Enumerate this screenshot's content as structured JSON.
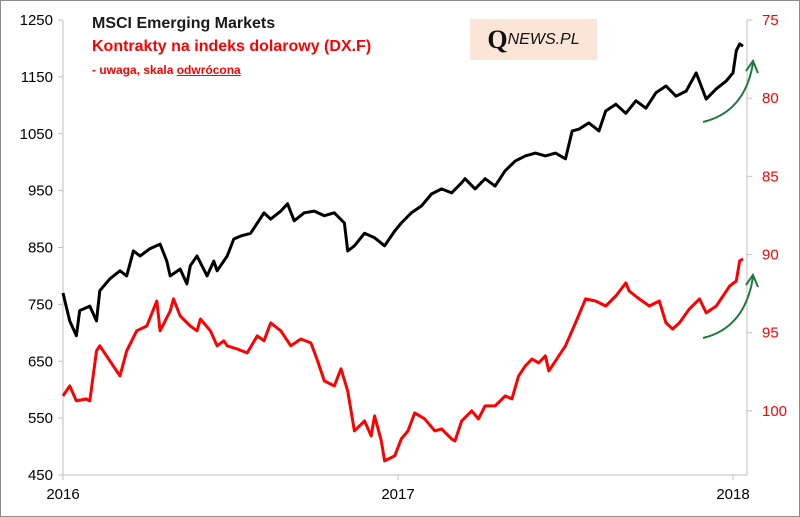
{
  "chart_data": {
    "type": "line",
    "title": "MSCI Emerging Markets",
    "subtitle": "Kontrakty na indeks dolarowy (DX.F)",
    "note_prefix": "- uwaga, skala ",
    "note_underlined": "odwrócona",
    "logo": {
      "q": "Q",
      "rest": "NEWS.PL"
    },
    "x_ticks": [
      "2016",
      "2017",
      "2018"
    ],
    "x_tick_values": [
      2016,
      2017,
      2018
    ],
    "xlim": [
      2016,
      2018.04
    ],
    "left_axis": {
      "ticks": [
        "1250",
        "1150",
        "1050",
        "950",
        "850",
        "750",
        "650",
        "550",
        "450"
      ],
      "tick_values": [
        1250,
        1150,
        1050,
        950,
        850,
        750,
        650,
        550,
        450
      ],
      "ylim": [
        450,
        1250
      ]
    },
    "right_axis": {
      "ticks": [
        "75",
        "80",
        "85",
        "90",
        "95",
        "100"
      ],
      "tick_values": [
        75,
        80,
        85,
        90,
        95,
        100
      ],
      "ylim": [
        75,
        104.1
      ],
      "inverted": true
    },
    "colors": {
      "msci": "#000000",
      "dx": "#ff0000",
      "arrow": "#1e7a3c",
      "logo_bg": "#fbe5d6"
    },
    "series": [
      {
        "name": "MSCI Emerging Markets",
        "axis": "left",
        "x": [
          2016.0,
          2016.02,
          2016.04,
          2016.05,
          2016.08,
          2016.1,
          2016.11,
          2016.14,
          2016.17,
          2016.19,
          2016.21,
          2016.23,
          2016.26,
          2016.29,
          2016.31,
          2016.32,
          2016.35,
          2016.37,
          2016.38,
          2016.4,
          2016.43,
          2016.45,
          2016.46,
          2016.49,
          2016.51,
          2016.53,
          2016.56,
          2016.6,
          2016.62,
          2016.65,
          2016.67,
          2016.69,
          2016.72,
          2016.75,
          2016.78,
          2016.81,
          2016.84,
          2016.85,
          2016.87,
          2016.9,
          2016.93,
          2016.96,
          2016.99,
          2017.01,
          2017.04,
          2017.07,
          2017.1,
          2017.13,
          2017.16,
          2017.19,
          2017.2,
          2017.23,
          2017.26,
          2017.29,
          2017.32,
          2017.35,
          2017.38,
          2017.41,
          2017.44,
          2017.47,
          2017.5,
          2017.52,
          2017.54,
          2017.57,
          2017.6,
          2017.62,
          2017.65,
          2017.68,
          2017.71,
          2017.74,
          2017.77,
          2017.8,
          2017.83,
          2017.86,
          2017.89,
          2017.92,
          2017.95,
          2017.98,
          2018.0,
          2018.01,
          2018.02,
          2018.03
        ],
        "values": [
          770,
          721,
          695,
          739,
          747,
          721,
          774,
          795,
          809,
          800,
          844,
          835,
          848,
          856,
          826,
          800,
          812,
          786,
          818,
          835,
          800,
          826,
          809,
          835,
          865,
          870,
          875,
          911,
          900,
          914,
          927,
          897,
          911,
          914,
          906,
          911,
          893,
          844,
          853,
          875,
          867,
          853,
          879,
          893,
          911,
          923,
          944,
          953,
          946,
          964,
          971,
          953,
          971,
          958,
          985,
          1002,
          1011,
          1016,
          1011,
          1016,
          1006,
          1055,
          1058,
          1069,
          1055,
          1090,
          1102,
          1086,
          1108,
          1095,
          1122,
          1134,
          1116,
          1125,
          1157,
          1111,
          1129,
          1143,
          1157,
          1196,
          1208,
          1204
        ]
      },
      {
        "name": "Kontrakty na indeks dolarowy (DX.F)",
        "axis": "right",
        "x": [
          2016.0,
          2016.02,
          2016.04,
          2016.07,
          2016.08,
          2016.1,
          2016.11,
          2016.14,
          2016.17,
          2016.19,
          2016.22,
          2016.25,
          2016.28,
          2016.29,
          2016.32,
          2016.33,
          2016.35,
          2016.38,
          2016.4,
          2016.41,
          2016.44,
          2016.46,
          2016.48,
          2016.49,
          2016.52,
          2016.55,
          2016.58,
          2016.6,
          2016.62,
          2016.65,
          2016.68,
          2016.71,
          2016.74,
          2016.76,
          2016.78,
          2016.81,
          2016.83,
          2016.85,
          2016.87,
          2016.9,
          2016.92,
          2016.93,
          2016.95,
          2016.96,
          2016.99,
          2017.01,
          2017.03,
          2017.05,
          2017.08,
          2017.11,
          2017.13,
          2017.16,
          2017.17,
          2017.19,
          2017.22,
          2017.24,
          2017.26,
          2017.29,
          2017.32,
          2017.34,
          2017.36,
          2017.38,
          2017.4,
          2017.42,
          2017.44,
          2017.45,
          2017.47,
          2017.5,
          2017.53,
          2017.56,
          2017.59,
          2017.62,
          2017.65,
          2017.68,
          2017.69,
          2017.72,
          2017.75,
          2017.78,
          2017.8,
          2017.82,
          2017.84,
          2017.87,
          2017.9,
          2017.92,
          2017.95,
          2017.97,
          2017.99,
          2018.01,
          2018.02,
          2018.03
        ],
        "values": [
          99.04,
          98.4,
          99.36,
          99.23,
          99.36,
          96.16,
          95.84,
          96.8,
          97.76,
          96.16,
          94.88,
          94.57,
          92.97,
          94.88,
          93.61,
          92.84,
          93.93,
          94.57,
          94.88,
          94.12,
          94.88,
          95.84,
          95.52,
          95.84,
          96.04,
          96.29,
          95.2,
          95.52,
          94.37,
          94.88,
          95.84,
          95.4,
          95.65,
          96.8,
          98.08,
          98.4,
          97.31,
          98.72,
          101.28,
          100.64,
          101.6,
          100.32,
          101.92,
          103.2,
          102.88,
          101.79,
          101.28,
          100.13,
          100.51,
          101.28,
          101.15,
          101.79,
          101.92,
          100.64,
          100.0,
          100.51,
          99.68,
          99.68,
          99.04,
          99.23,
          97.76,
          97.12,
          96.68,
          96.93,
          96.48,
          97.44,
          96.8,
          95.84,
          94.37,
          92.84,
          92.97,
          93.29,
          92.65,
          91.82,
          92.33,
          92.84,
          93.29,
          92.97,
          94.37,
          94.76,
          94.37,
          93.48,
          92.84,
          93.73,
          93.29,
          92.65,
          92.01,
          91.69,
          90.41,
          90.28
        ]
      }
    ]
  }
}
